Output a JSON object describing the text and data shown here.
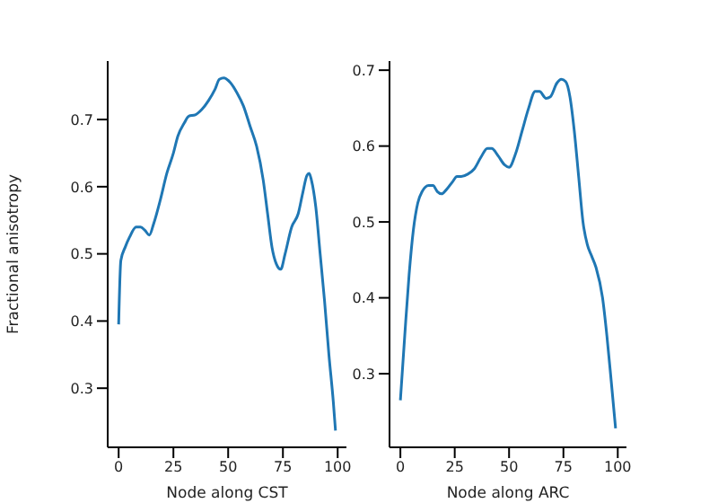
{
  "chart_data": [
    {
      "type": "line",
      "xlabel": "Node along CST",
      "ylabel": "Fractional anisotropy",
      "xlim": [
        -5,
        104
      ],
      "ylim": [
        0.212,
        0.787
      ],
      "xticks": [
        0,
        25,
        50,
        75,
        100
      ],
      "yticks": [
        0.3,
        0.4,
        0.5,
        0.6,
        0.7
      ],
      "grid": false,
      "legend": false,
      "marker": "none",
      "line_style": "solid",
      "series": [
        {
          "color": "#1f77b4",
          "x": [
            0,
            1,
            3,
            5,
            8,
            10,
            12,
            14,
            16,
            19,
            22,
            25,
            27,
            30,
            32,
            35,
            38,
            41,
            44,
            46,
            48,
            51,
            54,
            57,
            60,
            63,
            66,
            68,
            70,
            72,
            74,
            76,
            79,
            82,
            84,
            86,
            87,
            88,
            90,
            92,
            94,
            96,
            98,
            99
          ],
          "values": [
            0.395,
            0.49,
            0.51,
            0.525,
            0.54,
            0.54,
            0.535,
            0.528,
            0.545,
            0.58,
            0.62,
            0.65,
            0.675,
            0.695,
            0.705,
            0.707,
            0.715,
            0.728,
            0.745,
            0.76,
            0.762,
            0.755,
            0.74,
            0.72,
            0.69,
            0.66,
            0.61,
            0.56,
            0.51,
            0.485,
            0.477,
            0.5,
            0.54,
            0.56,
            0.59,
            0.617,
            0.62,
            0.61,
            0.57,
            0.5,
            0.43,
            0.35,
            0.28,
            0.237
          ]
        }
      ]
    },
    {
      "type": "line",
      "xlabel": "Node along ARC",
      "xlim": [
        -5,
        104
      ],
      "ylim": [
        0.203,
        0.712
      ],
      "xticks": [
        0,
        25,
        50,
        75,
        100
      ],
      "yticks": [
        0.3,
        0.4,
        0.5,
        0.6,
        0.7
      ],
      "grid": false,
      "legend": false,
      "marker": "none",
      "line_style": "solid",
      "series": [
        {
          "color": "#1f77b4",
          "x": [
            0,
            2,
            4,
            6,
            8,
            10,
            13,
            15,
            17,
            19,
            21,
            24,
            26,
            28,
            31,
            34,
            37,
            40,
            42,
            45,
            48,
            50,
            53,
            56,
            59,
            62,
            64,
            67,
            69,
            72,
            74,
            76,
            78,
            80,
            82,
            84,
            86,
            88,
            90,
            93,
            95,
            97,
            99
          ],
          "values": [
            0.265,
            0.35,
            0.43,
            0.49,
            0.525,
            0.54,
            0.548,
            0.548,
            0.54,
            0.537,
            0.542,
            0.553,
            0.56,
            0.56,
            0.563,
            0.57,
            0.585,
            0.597,
            0.597,
            0.587,
            0.575,
            0.572,
            0.59,
            0.62,
            0.65,
            0.672,
            0.672,
            0.663,
            0.665,
            0.683,
            0.688,
            0.685,
            0.665,
            0.62,
            0.56,
            0.5,
            0.47,
            0.455,
            0.44,
            0.4,
            0.35,
            0.29,
            0.228
          ]
        }
      ]
    }
  ]
}
